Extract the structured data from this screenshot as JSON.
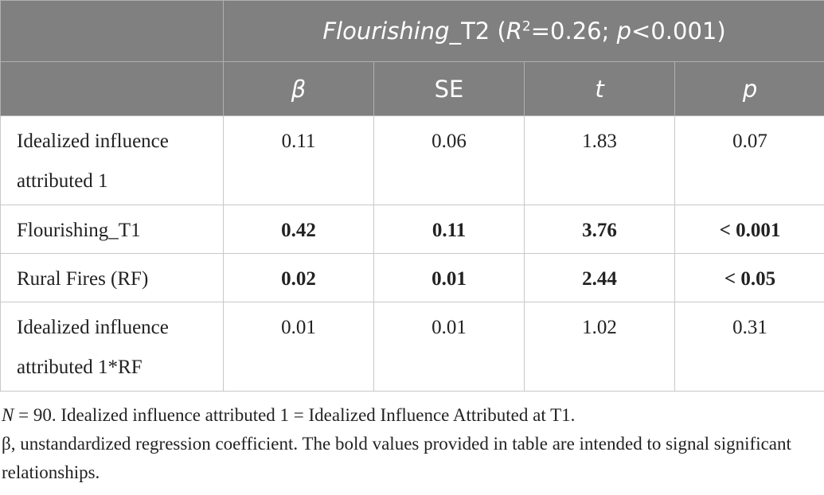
{
  "table": {
    "title": [
      "Flourishing",
      "_T2 (",
      "R",
      "2",
      "=0.26; ",
      "p",
      "<0.001)"
    ],
    "columns": [
      {
        "text": "β",
        "italic": true
      },
      {
        "text": "SE",
        "italic": false
      },
      {
        "text": "t",
        "italic": true
      },
      {
        "text": "p",
        "italic": true
      }
    ],
    "rows": [
      {
        "label": "Idealized influence attributed 1",
        "cells": [
          "0.11",
          "0.06",
          "1.83",
          "0.07"
        ],
        "bold": false
      },
      {
        "label": "Flourishing_T1",
        "cells": [
          "0.42",
          "0.11",
          "3.76",
          "< 0.001"
        ],
        "bold": true
      },
      {
        "label": "Rural Fires (RF)",
        "cells": [
          "0.02",
          "0.01",
          "2.44",
          "< 0.05"
        ],
        "bold": true
      },
      {
        "label": "Idealized influence attributed 1*RF",
        "cells": [
          "0.01",
          "0.01",
          "1.02",
          "0.31"
        ],
        "bold": false
      }
    ]
  },
  "notes": [
    [
      "N",
      " = 90. Idealized influence attributed 1 = Idealized Influence Attributed at T1."
    ],
    "β, unstandardized regression coefficient. The bold values provided in table are intended to signal significant relationships."
  ]
}
